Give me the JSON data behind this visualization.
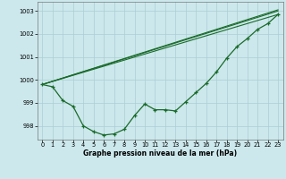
{
  "xlabel": "Graphe pression niveau de la mer (hPa)",
  "bg_color": "#cce8ec",
  "grid_color": "#aacdd4",
  "line_color": "#1a6b2a",
  "xlim": [
    -0.5,
    23.5
  ],
  "ylim": [
    997.4,
    1003.4
  ],
  "yticks": [
    998,
    999,
    1000,
    1001,
    1002,
    1003
  ],
  "xticks": [
    0,
    1,
    2,
    3,
    4,
    5,
    6,
    7,
    8,
    9,
    10,
    11,
    12,
    13,
    14,
    15,
    16,
    17,
    18,
    19,
    20,
    21,
    22,
    23
  ],
  "obs_x": [
    0,
    1,
    2,
    3,
    4,
    5,
    6,
    7,
    8,
    9,
    10,
    11,
    12,
    13,
    14,
    15,
    16,
    17,
    18,
    19,
    20,
    21,
    22,
    23
  ],
  "obs_y": [
    999.8,
    999.7,
    999.1,
    998.85,
    998.0,
    997.75,
    997.6,
    997.65,
    997.85,
    998.45,
    998.95,
    998.7,
    998.7,
    998.65,
    999.05,
    999.45,
    999.85,
    1000.35,
    1000.95,
    1001.45,
    1001.8,
    1002.2,
    1002.45,
    1002.85
  ],
  "line_straight_1": {
    "x": [
      0,
      23
    ],
    "y": [
      999.8,
      1003.05
    ]
  },
  "line_straight_2": {
    "x": [
      0,
      23
    ],
    "y": [
      999.8,
      1002.85
    ]
  },
  "line_straight_3": {
    "x": [
      0,
      23
    ],
    "y": [
      999.8,
      1003.0
    ]
  },
  "xlabel_fontsize": 5.5,
  "xlabel_fontweight": "bold",
  "tick_fontsize": 4.8,
  "linewidth": 0.9,
  "marker": "+",
  "markersize": 3.5,
  "markeredgewidth": 0.9
}
